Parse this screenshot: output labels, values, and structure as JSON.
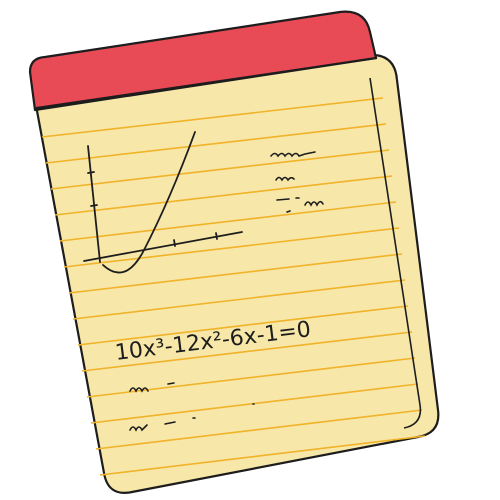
{
  "notepad": {
    "equation": "10x³-12x²-6x-1=0",
    "colors": {
      "header": "#e84b55",
      "paper": "#f7e7a8",
      "rule_line": "#f0b32a",
      "ink": "#1d1d1d"
    },
    "icons": {
      "graph": "parabola-graph-icon",
      "scribbles": "scribble-icon"
    }
  }
}
